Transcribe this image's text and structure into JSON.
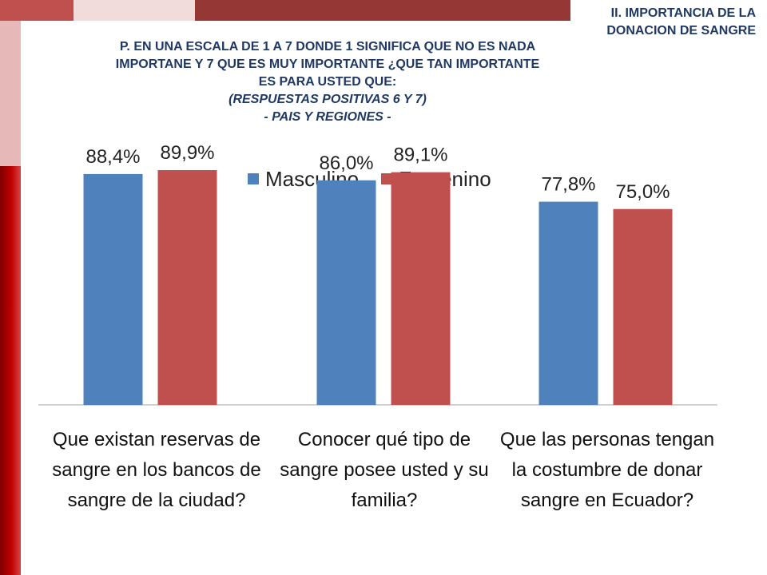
{
  "header": {
    "section_title": "II. IMPORTANCIA DE LA DONACION DE SANGRE",
    "question_line1": "P. EN UNA ESCALA DE 1 A 7 DONDE 1 SIGNIFICA QUE NO ES NADA",
    "question_line2": "IMPORTANE Y 7 QUE ES MUY IMPORTANTE ¿QUE TAN IMPORTANTE",
    "question_line3": "ES PARA USTED QUE:",
    "question_line4": "(RESPUESTAS POSITIVAS 6 Y 7)",
    "question_line5": "- PAIS Y REGIONES -"
  },
  "colors": {
    "masculino": "#4f81bd",
    "femenino": "#c0504d",
    "title": "#1f3864"
  },
  "chart_data": {
    "type": "bar",
    "categories": [
      "Que existan reservas de sangre en los bancos de sangre de la ciudad?",
      "Conocer qué tipo de sangre posee usted y su familia?",
      "Que las personas tengan la costumbre de donar sangre en Ecuador?"
    ],
    "series": [
      {
        "name": "Masculino",
        "values": [
          88.4,
          86.0,
          77.8
        ],
        "labels": [
          "88,4%",
          "86,0%",
          "77,8%"
        ]
      },
      {
        "name": "Femenino",
        "values": [
          89.9,
          89.1,
          75.0
        ],
        "labels": [
          "89,9%",
          "89,1%",
          "75,0%"
        ]
      }
    ],
    "legend_position": "top",
    "grid": false
  }
}
